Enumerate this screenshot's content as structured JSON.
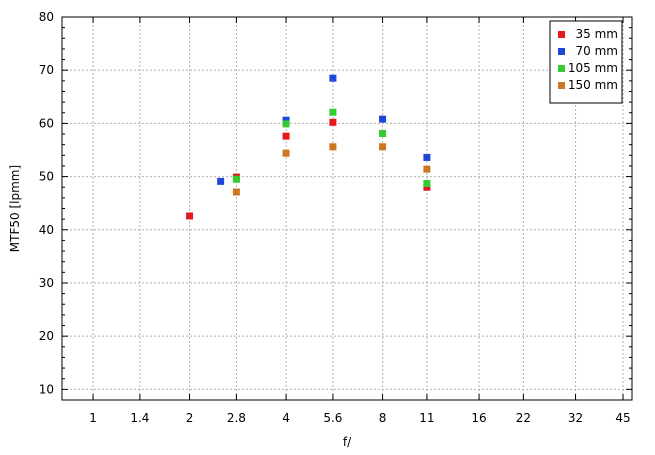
{
  "chart_data": {
    "type": "scatter",
    "title": "",
    "xlabel": "f/",
    "ylabel": "MTF50 [lpmm]",
    "x_scale": "log2",
    "x_ticks": [
      1,
      1.4,
      2,
      2.8,
      4,
      5.6,
      8,
      11,
      16,
      22,
      32,
      45
    ],
    "x_tick_labels": [
      "1",
      "1.4",
      "2",
      "2.8",
      "4",
      "5.6",
      "8",
      "11",
      "16",
      "22",
      "32",
      "45"
    ],
    "xlim": [
      0.8,
      48
    ],
    "y_ticks": [
      10,
      20,
      30,
      40,
      50,
      60,
      70,
      80
    ],
    "y_tick_labels": [
      "10",
      "20",
      "30",
      "40",
      "50",
      "60",
      "70",
      "80"
    ],
    "ylim": [
      8,
      80
    ],
    "grid": true,
    "legend_position": "top-right",
    "series": [
      {
        "name": "35 mm",
        "color": "#e41a1c",
        "x": [
          2,
          2.8,
          4,
          5.6,
          11
        ],
        "y": [
          42.6,
          49.9,
          57.6,
          60.2,
          48.0
        ]
      },
      {
        "name": "70 mm",
        "color": "#1f46d8",
        "x": [
          2.5,
          4,
          5.6,
          8,
          11
        ],
        "y": [
          49.1,
          60.6,
          68.5,
          60.8,
          53.6
        ]
      },
      {
        "name": "105 mm",
        "color": "#33cc33",
        "x": [
          2.8,
          4,
          5.6,
          8,
          11
        ],
        "y": [
          49.5,
          59.9,
          62.1,
          58.1,
          48.7
        ]
      },
      {
        "name": "150 mm",
        "color": "#cc7722",
        "x": [
          2.8,
          4,
          5.6,
          8,
          11
        ],
        "y": [
          47.1,
          54.4,
          55.6,
          55.6,
          51.4
        ]
      }
    ]
  }
}
